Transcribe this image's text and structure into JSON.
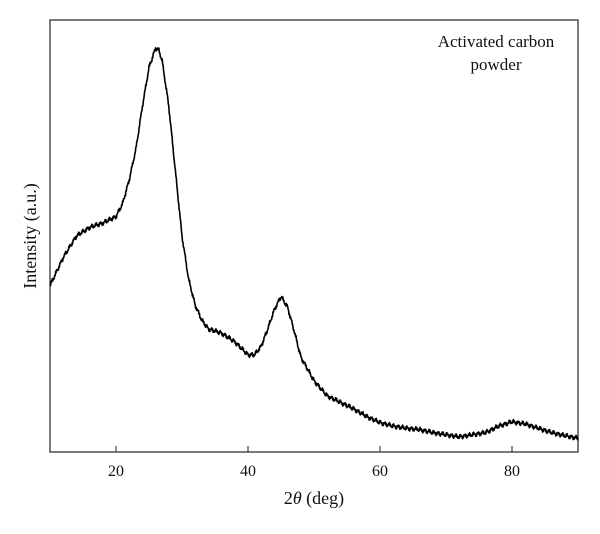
{
  "chart_data": {
    "type": "line",
    "title": "",
    "annotation_lines": [
      "Activated carbon",
      "powder"
    ],
    "xlabel_prefix": "2",
    "xlabel_symbol": "θ",
    "xlabel_suffix": " (deg)",
    "ylabel": "Intensity (a.u.)",
    "xlim": [
      10,
      90
    ],
    "ylim": [
      0,
      1
    ],
    "x_ticks": [
      20,
      40,
      60,
      80
    ],
    "y_ticks": [],
    "grid": false,
    "line_color": "#000000",
    "series": [
      {
        "x": [
          10,
          12,
          14,
          16,
          18,
          20,
          21,
          22,
          23,
          24,
          25,
          26,
          26.5,
          27,
          28,
          29,
          30,
          31,
          32,
          33,
          34,
          36,
          38,
          40,
          41,
          42,
          43,
          44,
          45,
          46,
          47,
          48,
          50,
          52,
          54,
          56,
          58,
          60,
          62,
          64,
          66,
          68,
          70,
          72,
          74,
          76,
          78,
          80,
          82,
          84,
          86,
          88,
          90
        ],
        "y": [
          0.385,
          0.45,
          0.5,
          0.52,
          0.53,
          0.545,
          0.575,
          0.63,
          0.7,
          0.8,
          0.89,
          0.935,
          0.93,
          0.905,
          0.8,
          0.65,
          0.5,
          0.4,
          0.34,
          0.305,
          0.285,
          0.275,
          0.255,
          0.225,
          0.225,
          0.245,
          0.285,
          0.33,
          0.36,
          0.335,
          0.28,
          0.22,
          0.165,
          0.13,
          0.115,
          0.1,
          0.082,
          0.068,
          0.06,
          0.055,
          0.052,
          0.045,
          0.04,
          0.035,
          0.04,
          0.045,
          0.06,
          0.07,
          0.065,
          0.055,
          0.045,
          0.038,
          0.032
        ]
      }
    ]
  }
}
